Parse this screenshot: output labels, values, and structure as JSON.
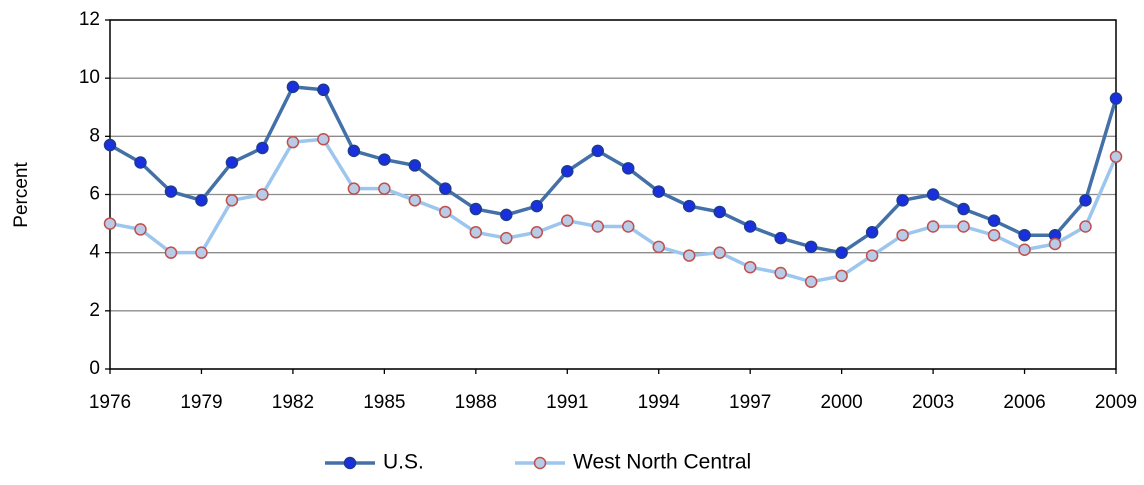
{
  "chart_data": {
    "type": "line",
    "y_label": "Percent",
    "x": [
      1976,
      1977,
      1978,
      1979,
      1980,
      1981,
      1982,
      1983,
      1984,
      1985,
      1986,
      1987,
      1988,
      1989,
      1990,
      1991,
      1992,
      1993,
      1994,
      1995,
      1996,
      1997,
      1998,
      1999,
      2000,
      2001,
      2002,
      2003,
      2004,
      2005,
      2006,
      2007,
      2008,
      2009
    ],
    "series": [
      {
        "name": "U.S.",
        "color": "#4470a8",
        "marker_fill": "#1a2fe0",
        "marker_edge": "#1c3c8c",
        "values": [
          7.7,
          7.1,
          6.1,
          5.8,
          7.1,
          7.6,
          9.7,
          9.6,
          7.5,
          7.2,
          7.0,
          6.2,
          5.5,
          5.3,
          5.6,
          6.8,
          7.5,
          6.9,
          6.1,
          5.6,
          5.4,
          4.9,
          4.5,
          4.2,
          4.0,
          4.7,
          5.8,
          6.0,
          5.5,
          5.1,
          4.6,
          4.6,
          5.8,
          9.3
        ]
      },
      {
        "name": "West North Central",
        "color": "#9cc6ee",
        "marker_fill": "#b9cbe6",
        "marker_edge": "#c0504d",
        "values": [
          5.0,
          4.8,
          4.0,
          4.0,
          5.8,
          6.0,
          7.8,
          7.9,
          6.2,
          6.2,
          5.8,
          5.4,
          4.7,
          4.5,
          4.7,
          5.1,
          4.9,
          4.9,
          4.2,
          3.9,
          4.0,
          3.5,
          3.3,
          3.0,
          3.2,
          3.9,
          4.6,
          4.9,
          4.9,
          4.6,
          4.1,
          4.3,
          4.9,
          7.3
        ]
      }
    ],
    "xlim": [
      1976,
      2009
    ],
    "xticks": [
      1976,
      1979,
      1982,
      1985,
      1988,
      1991,
      1994,
      1997,
      2000,
      2003,
      2006,
      2009
    ],
    "ylim": [
      0,
      12
    ],
    "yticks": [
      0,
      2,
      4,
      6,
      8,
      10,
      12
    ],
    "grid": true,
    "legend": "bottom"
  }
}
